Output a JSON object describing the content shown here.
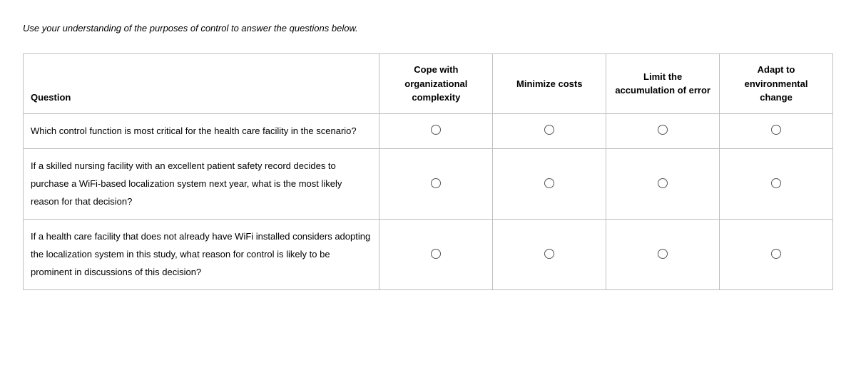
{
  "instruction": "Use your understanding of the purposes of control to answer the questions below.",
  "headers": {
    "question": "Question",
    "opt1": "Cope with organizational complexity",
    "opt2": "Minimize costs",
    "opt3": "Limit the accumulation of error",
    "opt4": "Adapt to environmental change"
  },
  "rows": [
    {
      "text": "Which control function is most critical for the health care facility in the scenario?"
    },
    {
      "text": "If a skilled nursing facility with an excellent patient safety record decides to purchase a WiFi-based localization system next year, what is the most likely reason for that decision?"
    },
    {
      "text": "If a health care facility that does not already have WiFi installed considers adopting the localization system in this study, what reason for control is likely to be prominent in discussions of this decision?"
    }
  ]
}
